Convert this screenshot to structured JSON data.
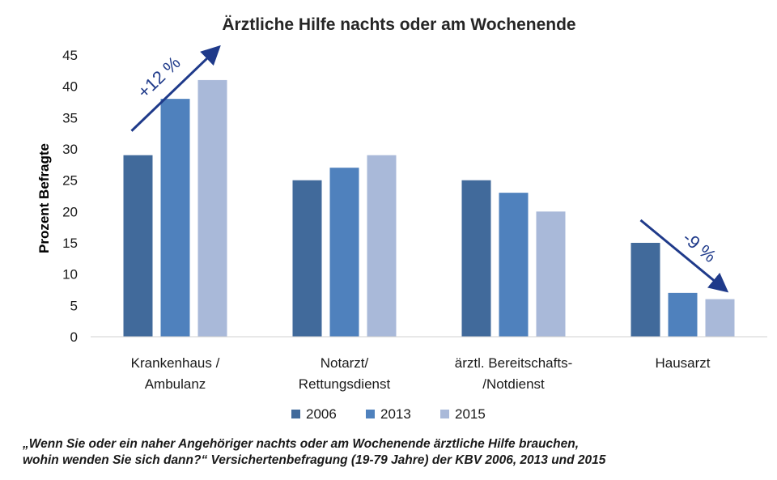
{
  "chart_data": {
    "type": "bar",
    "title": "Ärztliche Hilfe nachts oder am Wochenende",
    "ylabel": "Prozent Befragte",
    "xlabel": "",
    "ylim": [
      0,
      45
    ],
    "yticks": [
      0,
      5,
      10,
      15,
      20,
      25,
      30,
      35,
      40,
      45
    ],
    "grid": false,
    "legend_position": "bottom",
    "categories": [
      [
        "Krankenhaus /",
        "Ambulanz"
      ],
      [
        "Notarzt/",
        "Rettungsdienst"
      ],
      [
        "ärztl. Bereitschafts-",
        "/Notdienst"
      ],
      [
        "Hausarzt"
      ]
    ],
    "series": [
      {
        "name": "2006",
        "color": "#416a9b",
        "values": [
          29,
          25,
          25,
          15
        ]
      },
      {
        "name": "2013",
        "color": "#4f81bd",
        "values": [
          38,
          27,
          23,
          7
        ]
      },
      {
        "name": "2015",
        "color": "#a9b9d9",
        "values": [
          41,
          29,
          20,
          6
        ]
      }
    ],
    "annotations": [
      {
        "text": "+12 %",
        "direction": "up",
        "category_index": 0,
        "color": "#1f3a8a"
      },
      {
        "text": "-9 %",
        "direction": "down",
        "category_index": 3,
        "color": "#1f3a8a"
      }
    ]
  },
  "caption": {
    "line1": "„Wenn Sie oder ein naher Angehöriger nachts oder am Wochenende ärztliche Hilfe brauchen,",
    "line2": "wohin wenden Sie sich dann?“ Versichertenbefragung (19-79 Jahre) der KBV 2006, 2013 und 2015"
  }
}
